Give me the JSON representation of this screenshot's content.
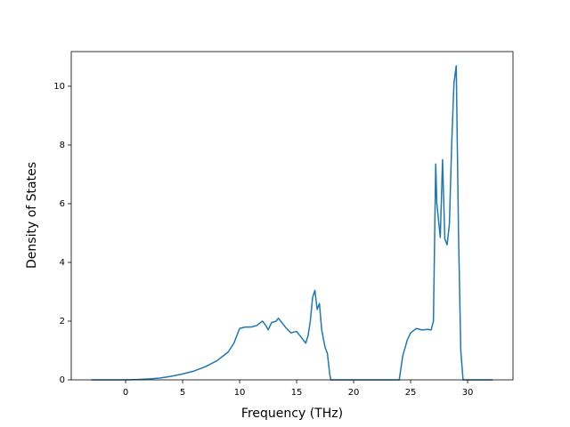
{
  "chart_data": {
    "type": "line",
    "x_label": "Frequency (THz)",
    "y_label": "Density of States",
    "x": [
      -3,
      0,
      1,
      2,
      3,
      4,
      5,
      6,
      7,
      8,
      9,
      9.5,
      9.8,
      10,
      10.5,
      11,
      11.5,
      12,
      12.3,
      12.5,
      12.8,
      13.2,
      13.4,
      13.6,
      14,
      14.5,
      15,
      15.5,
      15.8,
      16,
      16.2,
      16.4,
      16.6,
      16.8,
      17,
      17.2,
      17.5,
      17.7,
      17.9,
      18,
      24,
      24.3,
      24.7,
      25,
      25.5,
      26,
      26.5,
      26.8,
      27,
      27.2,
      27.3,
      27.6,
      27.8,
      28,
      28.2,
      28.4,
      28.6,
      28.8,
      29,
      29.2,
      29.4,
      29.6,
      32.2
    ],
    "series": [
      {
        "color": "#1f77b4",
        "values": [
          0,
          0,
          0.01,
          0.03,
          0.06,
          0.12,
          0.2,
          0.3,
          0.45,
          0.65,
          0.95,
          1.25,
          1.55,
          1.75,
          1.8,
          1.8,
          1.85,
          2.0,
          1.85,
          1.7,
          1.95,
          2.0,
          2.1,
          2.0,
          1.8,
          1.6,
          1.65,
          1.4,
          1.25,
          1.5,
          2.0,
          2.8,
          3.05,
          2.4,
          2.6,
          1.7,
          1.1,
          0.9,
          0.2,
          0,
          0,
          0.8,
          1.35,
          1.6,
          1.75,
          1.7,
          1.72,
          1.7,
          2.0,
          7.35,
          6.0,
          4.85,
          7.5,
          4.8,
          4.6,
          5.3,
          8.0,
          10.1,
          10.7,
          5.0,
          1.0,
          0,
          0
        ]
      }
    ],
    "xlim": [
      -4.77,
      33.98
    ],
    "ylim": [
      0,
      11.18
    ],
    "xticks": [
      0,
      5,
      10,
      15,
      20,
      25,
      30
    ],
    "yticks": [
      0,
      2,
      4,
      6,
      8,
      10
    ]
  }
}
